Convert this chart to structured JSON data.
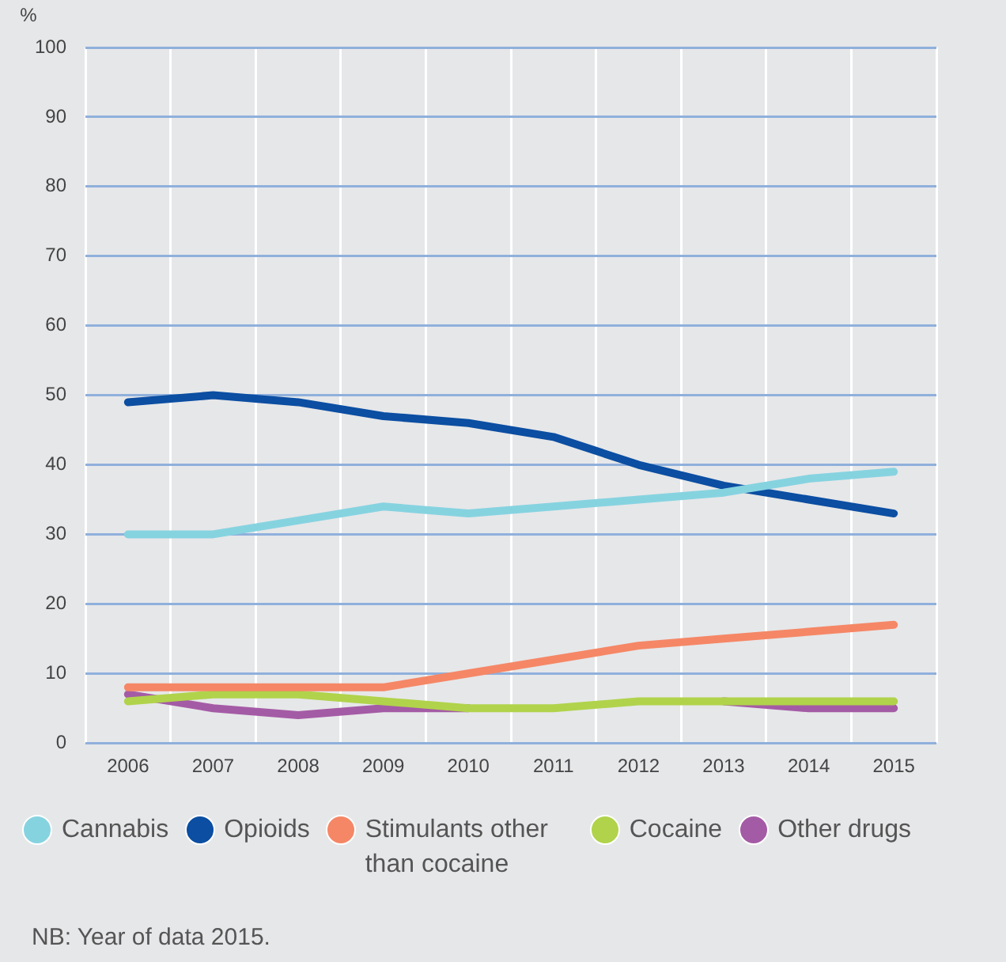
{
  "chart_data": {
    "type": "line",
    "ylabel": "%",
    "categories": [
      "2006",
      "2007",
      "2008",
      "2009",
      "2010",
      "2011",
      "2012",
      "2013",
      "2014",
      "2015"
    ],
    "series": [
      {
        "name": "Cannabis",
        "color": "#86d3e0",
        "values": [
          30,
          30,
          32,
          34,
          33,
          34,
          35,
          36,
          38,
          39
        ]
      },
      {
        "name": "Opioids",
        "color": "#0b4ea2",
        "values": [
          49,
          50,
          49,
          47,
          46,
          44,
          40,
          37,
          35,
          33
        ]
      },
      {
        "name": "Stimulants other than cocaine",
        "color": "#f58766",
        "values": [
          8,
          8,
          8,
          8,
          10,
          12,
          14,
          15,
          16,
          17
        ]
      },
      {
        "name": "Cocaine",
        "color": "#b0d34b",
        "values": [
          6,
          7,
          7,
          6,
          5,
          5,
          6,
          6,
          6,
          6
        ]
      },
      {
        "name": "Other drugs",
        "color": "#a45ba5",
        "values": [
          7,
          5,
          4,
          5,
          5,
          null,
          null,
          6,
          5,
          5
        ]
      }
    ],
    "ylim": [
      0,
      100
    ],
    "yticks": [
      0,
      10,
      20,
      30,
      40,
      50,
      60,
      70,
      80,
      90,
      100
    ],
    "grid": true,
    "legend": "bottom",
    "marker": "none",
    "line_style": "solid",
    "annotations": [
      "NB: Year of data 2015."
    ]
  }
}
